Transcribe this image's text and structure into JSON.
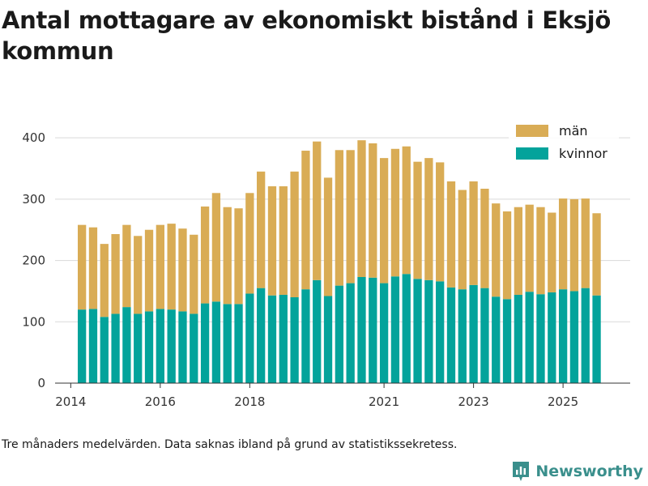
{
  "title": "Antal mottagare av ekonomiskt bistånd i Eksjö kommun",
  "note": "Tre månaders medelvärden. Data saknas ibland på grund av statistikssekretess.",
  "brand": {
    "name": "Newsworthy"
  },
  "colors": {
    "man": "#d9ac55",
    "kvinnor": "#03a39b",
    "grid": "#d9d9d9",
    "axis": "#333333"
  },
  "chart_data": {
    "type": "bar",
    "stacked": true,
    "title": "Antal mottagare av ekonomiskt bistånd i Eksjö kommun",
    "xlabel": "",
    "ylabel": "",
    "ylim": [
      0,
      420
    ],
    "yticks": [
      0,
      100,
      200,
      300,
      400
    ],
    "xticks": [
      {
        "label": "2014",
        "value": 2014.0
      },
      {
        "label": "2016",
        "value": 2016.0
      },
      {
        "label": "2018",
        "value": 2018.0
      },
      {
        "label": "2021",
        "value": 2021.0
      },
      {
        "label": "2023",
        "value": 2023.0
      },
      {
        "label": "2025",
        "value": 2025.0
      }
    ],
    "x_start": 2014.25,
    "x_step": 0.25,
    "x_domain": [
      2013.65,
      2026.5
    ],
    "legend": [
      {
        "name": "män",
        "key": "man"
      },
      {
        "name": "kvinnor",
        "key": "kvinnor"
      }
    ],
    "series": [
      {
        "name": "kvinnor",
        "key": "kvinnor",
        "values": [
          120,
          121,
          108,
          113,
          124,
          113,
          117,
          121,
          120,
          117,
          113,
          130,
          133,
          129,
          129,
          146,
          155,
          143,
          144,
          140,
          153,
          168,
          142,
          159,
          163,
          173,
          172,
          163,
          174,
          178,
          170,
          168,
          166,
          156,
          153,
          160,
          155,
          141,
          137,
          144,
          149,
          145,
          148,
          153,
          150,
          155,
          143
        ]
      },
      {
        "name": "män",
        "key": "man",
        "values": [
          138,
          133,
          119,
          130,
          134,
          127,
          133,
          137,
          140,
          135,
          129,
          158,
          177,
          158,
          156,
          164,
          190,
          178,
          177,
          205,
          226,
          226,
          193,
          221,
          217,
          223,
          219,
          204,
          208,
          208,
          191,
          199,
          194,
          173,
          162,
          169,
          162,
          152,
          143,
          143,
          142,
          142,
          130,
          148,
          150,
          146,
          134
        ]
      }
    ]
  }
}
